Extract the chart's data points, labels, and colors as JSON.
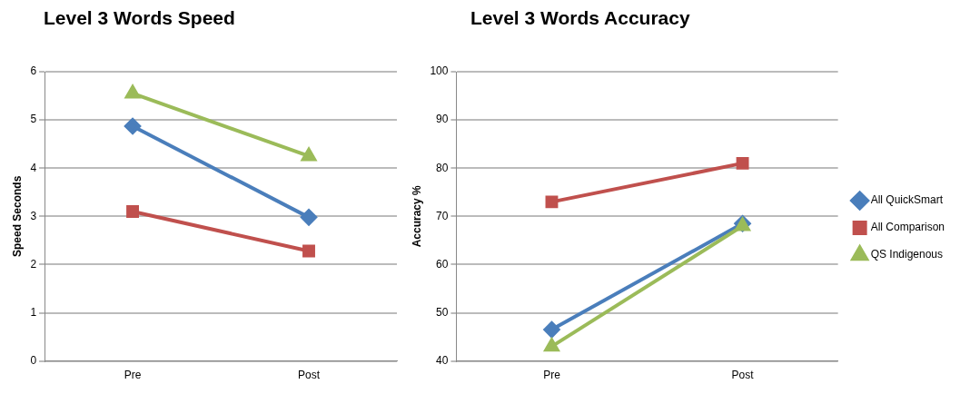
{
  "chart_data": [
    {
      "type": "line",
      "title": "Level 3 Words Speed",
      "ylabel": "Speed Seconds",
      "categories": [
        "Pre",
        "Post"
      ],
      "series": [
        {
          "color": "#4a7ebb",
          "marker": "diamond",
          "values": [
            4.87,
            2.98
          ]
        },
        {
          "color": "#c0504d",
          "marker": "square",
          "values": [
            3.1,
            2.28
          ]
        },
        {
          "color": "#9bbb59",
          "marker": "triangle",
          "values": [
            5.55,
            4.25
          ]
        }
      ],
      "ylim": [
        0,
        6
      ],
      "yticks": [
        0,
        1,
        2,
        3,
        4,
        5,
        6
      ],
      "grid": "y",
      "legend": false
    },
    {
      "type": "line",
      "title": "Level 3 Words Accuracy",
      "ylabel": "Accuracy %",
      "categories": [
        "Pre",
        "Post"
      ],
      "series": [
        {
          "name": "All QuickSmart",
          "color": "#4a7ebb",
          "marker": "diamond",
          "values": [
            46.5,
            68.5
          ]
        },
        {
          "name": "All Comparison",
          "color": "#c0504d",
          "marker": "square",
          "values": [
            73,
            81
          ]
        },
        {
          "name": "QS Indigenous",
          "color": "#9bbb59",
          "marker": "triangle",
          "values": [
            43,
            68
          ]
        }
      ],
      "ylim": [
        40,
        100
      ],
      "yticks": [
        40,
        50,
        60,
        70,
        80,
        90,
        100
      ],
      "grid": "y",
      "legend": "right"
    }
  ]
}
